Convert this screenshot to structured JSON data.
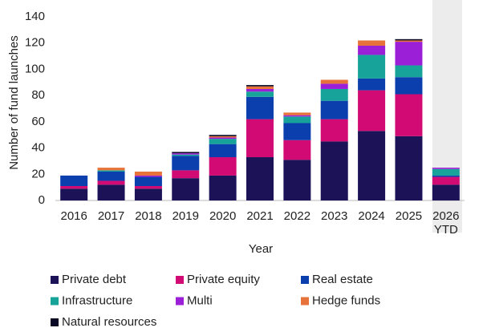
{
  "chart_data": {
    "type": "stacked_bar",
    "x_label": "Year",
    "y_label": "Number of fund launches",
    "categories": [
      "2016",
      "2017",
      "2018",
      "2019",
      "2020",
      "2021",
      "2022",
      "2023",
      "2024",
      "2025",
      "2026 YTD"
    ],
    "series": [
      {
        "name": "Private debt",
        "color": "#1b1257",
        "values": [
          9,
          12,
          9,
          17,
          19,
          33,
          31,
          45,
          53,
          49,
          12
        ]
      },
      {
        "name": "Private equity",
        "color": "#d10a74",
        "values": [
          2,
          3,
          2,
          6,
          14,
          29,
          15,
          17,
          31,
          32,
          6
        ]
      },
      {
        "name": "Real estate",
        "color": "#0b3fae",
        "values": [
          8,
          7,
          7,
          11,
          10,
          17,
          13,
          14,
          9,
          13,
          1
        ]
      },
      {
        "name": "Infrastructure",
        "color": "#17a39a",
        "values": [
          0,
          1,
          0,
          1,
          4,
          4,
          5,
          9,
          18,
          9,
          5
        ]
      },
      {
        "name": "Multi",
        "color": "#9c1fd8",
        "values": [
          0,
          0,
          1,
          1,
          1,
          2,
          1,
          4,
          7,
          18,
          1
        ]
      },
      {
        "name": "Hedge funds",
        "color": "#e8733a",
        "values": [
          0,
          2,
          3,
          0,
          1,
          2,
          2,
          3,
          4,
          1,
          0
        ]
      },
      {
        "name": "Natural resources",
        "color": "#0a0a26",
        "values": [
          0,
          0,
          0,
          1,
          1,
          1,
          0,
          0,
          0,
          1,
          0
        ]
      }
    ],
    "ylim": [
      0,
      140
    ],
    "yticks": [
      0,
      20,
      40,
      60,
      80,
      100,
      120,
      140
    ],
    "grid": false
  }
}
